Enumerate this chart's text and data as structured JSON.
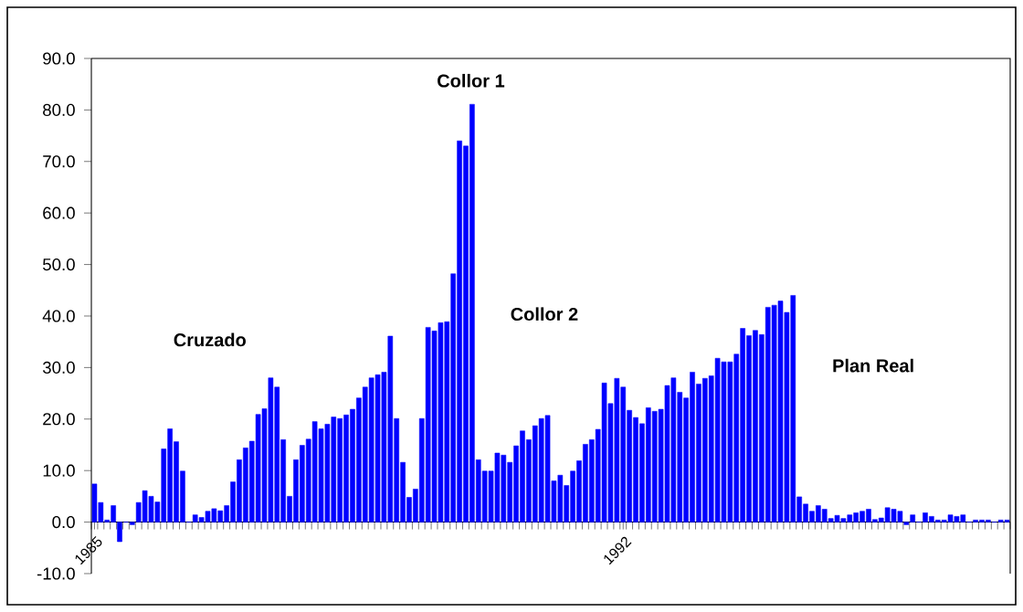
{
  "chart_data": {
    "type": "bar",
    "categories": [
      "1985",
      null,
      null,
      null,
      null,
      null,
      null,
      null,
      null,
      null,
      null,
      null,
      null,
      null,
      null,
      null,
      null,
      null,
      null,
      null,
      null,
      null,
      null,
      null,
      null,
      null,
      null,
      null,
      null,
      null,
      null,
      null,
      null,
      null,
      null,
      null,
      null,
      null,
      null,
      null,
      null,
      null,
      null,
      null,
      null,
      null,
      null,
      null,
      null,
      null,
      null,
      null,
      null,
      null,
      null,
      null,
      null,
      null,
      null,
      null,
      null,
      null,
      null,
      null,
      null,
      null,
      null,
      null,
      null,
      null,
      null,
      null,
      null,
      null,
      null,
      null,
      null,
      null,
      null,
      null,
      null,
      null,
      null,
      null,
      "1992",
      null,
      null,
      null,
      null,
      null,
      null,
      null,
      null,
      null,
      null,
      null,
      null,
      null,
      null,
      null,
      null,
      null,
      null,
      null,
      null,
      null,
      null,
      null,
      null,
      null,
      null,
      null,
      null,
      null,
      null,
      null,
      null,
      null,
      null,
      null,
      null,
      null,
      null,
      null,
      null,
      null,
      null,
      null,
      null,
      null,
      null,
      null,
      null,
      null,
      null,
      null,
      null,
      null,
      null,
      null,
      null,
      null,
      null,
      null,
      null,
      null
    ],
    "values": [
      7.4,
      3.8,
      0.4,
      3.2,
      -3.8,
      0,
      -0.5,
      3.8,
      6.1,
      5.0,
      3.9,
      14.2,
      18.1,
      15.6,
      9.9,
      0,
      1.4,
      0.9,
      2.1,
      2.6,
      2.2,
      3.2,
      7.8,
      12.1,
      14.4,
      15.7,
      20.9,
      22.0,
      28.0,
      26.2,
      16.0,
      5.0,
      12.1,
      14.9,
      16.1,
      19.5,
      18.1,
      19.0,
      20.4,
      20.1,
      20.8,
      21.9,
      24.1,
      26.2,
      28.0,
      28.6,
      29.1,
      36.1,
      20.1,
      11.6,
      4.8,
      6.4,
      20.1,
      37.8,
      37.1,
      38.7,
      38.9,
      48.2,
      74.0,
      73.0,
      81.1,
      12.1,
      9.9,
      9.9,
      13.4,
      13.0,
      11.6,
      14.8,
      17.7,
      16.0,
      18.7,
      20.1,
      20.7,
      8.0,
      9.1,
      7.1,
      9.9,
      11.9,
      15.1,
      16.0,
      18.0,
      27.0,
      23.0,
      27.9,
      26.2,
      21.7,
      20.3,
      19.1,
      22.2,
      21.5,
      21.9,
      26.5,
      28.0,
      25.2,
      24.1,
      29.1,
      26.8,
      27.9,
      28.4,
      31.8,
      31.1,
      31.1,
      32.6,
      37.6,
      36.2,
      37.2,
      36.4,
      41.7,
      42.1,
      42.9,
      40.7,
      44.0,
      4.9,
      3.5,
      2.1,
      3.2,
      2.5,
      0.7,
      1.3,
      0.7,
      1.4,
      1.8,
      2.1,
      2.5,
      0.5,
      0.8,
      2.8,
      2.5,
      2.1,
      -0.5,
      1.4,
      0,
      1.8,
      1.1,
      0.4,
      0.4,
      1.4,
      1.1,
      1.4,
      0,
      0.4,
      0.4,
      0.4,
      0,
      0.4,
      0.4
    ],
    "color": "#0000ff",
    "ylim": [
      -10,
      90
    ],
    "yticks": [
      {
        "value": -10,
        "label": "-10.0"
      },
      {
        "value": 0,
        "label": "0.0"
      },
      {
        "value": 10,
        "label": "10.0"
      },
      {
        "value": 20,
        "label": "20.0"
      },
      {
        "value": 30,
        "label": "30.0"
      },
      {
        "value": 40,
        "label": "40.0"
      },
      {
        "value": 50,
        "label": "50.0"
      },
      {
        "value": 60,
        "label": "60.0"
      },
      {
        "value": 70,
        "label": "70.0"
      },
      {
        "value": 80,
        "label": "80.0"
      },
      {
        "value": 90,
        "label": "90.0"
      }
    ],
    "annotations": [
      "Cruzado",
      "Collor 1",
      "Collor 2",
      "Plan Real"
    ]
  }
}
